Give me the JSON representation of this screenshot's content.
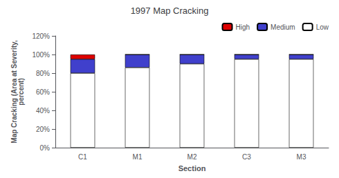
{
  "chart_data": {
    "type": "bar",
    "title": "1997 Map Cracking",
    "xlabel": "Section",
    "ylabel": "Map Cracking (Area at Severity,\npercent)",
    "categories": [
      "C1",
      "M1",
      "M2",
      "C3",
      "M3"
    ],
    "series": [
      {
        "name": "Low",
        "color": "#ffffff",
        "values": [
          80,
          86,
          90,
          95,
          95
        ]
      },
      {
        "name": "Medium",
        "color": "#4040cc",
        "values": [
          15,
          14,
          10,
          5,
          5
        ]
      },
      {
        "name": "High",
        "color": "#dd0000",
        "values": [
          5,
          0,
          0,
          0,
          0
        ]
      }
    ],
    "stacked": true,
    "ylim": [
      0,
      120
    ],
    "yticks": [
      {
        "value": 0,
        "label": "0%"
      },
      {
        "value": 20,
        "label": "20%"
      },
      {
        "value": 40,
        "label": "40%"
      },
      {
        "value": 60,
        "label": "60%"
      },
      {
        "value": 80,
        "label": "80%"
      },
      {
        "value": 100,
        "label": "100%"
      },
      {
        "value": 120,
        "label": "120%"
      }
    ],
    "grid": false,
    "legend": "upper right"
  }
}
